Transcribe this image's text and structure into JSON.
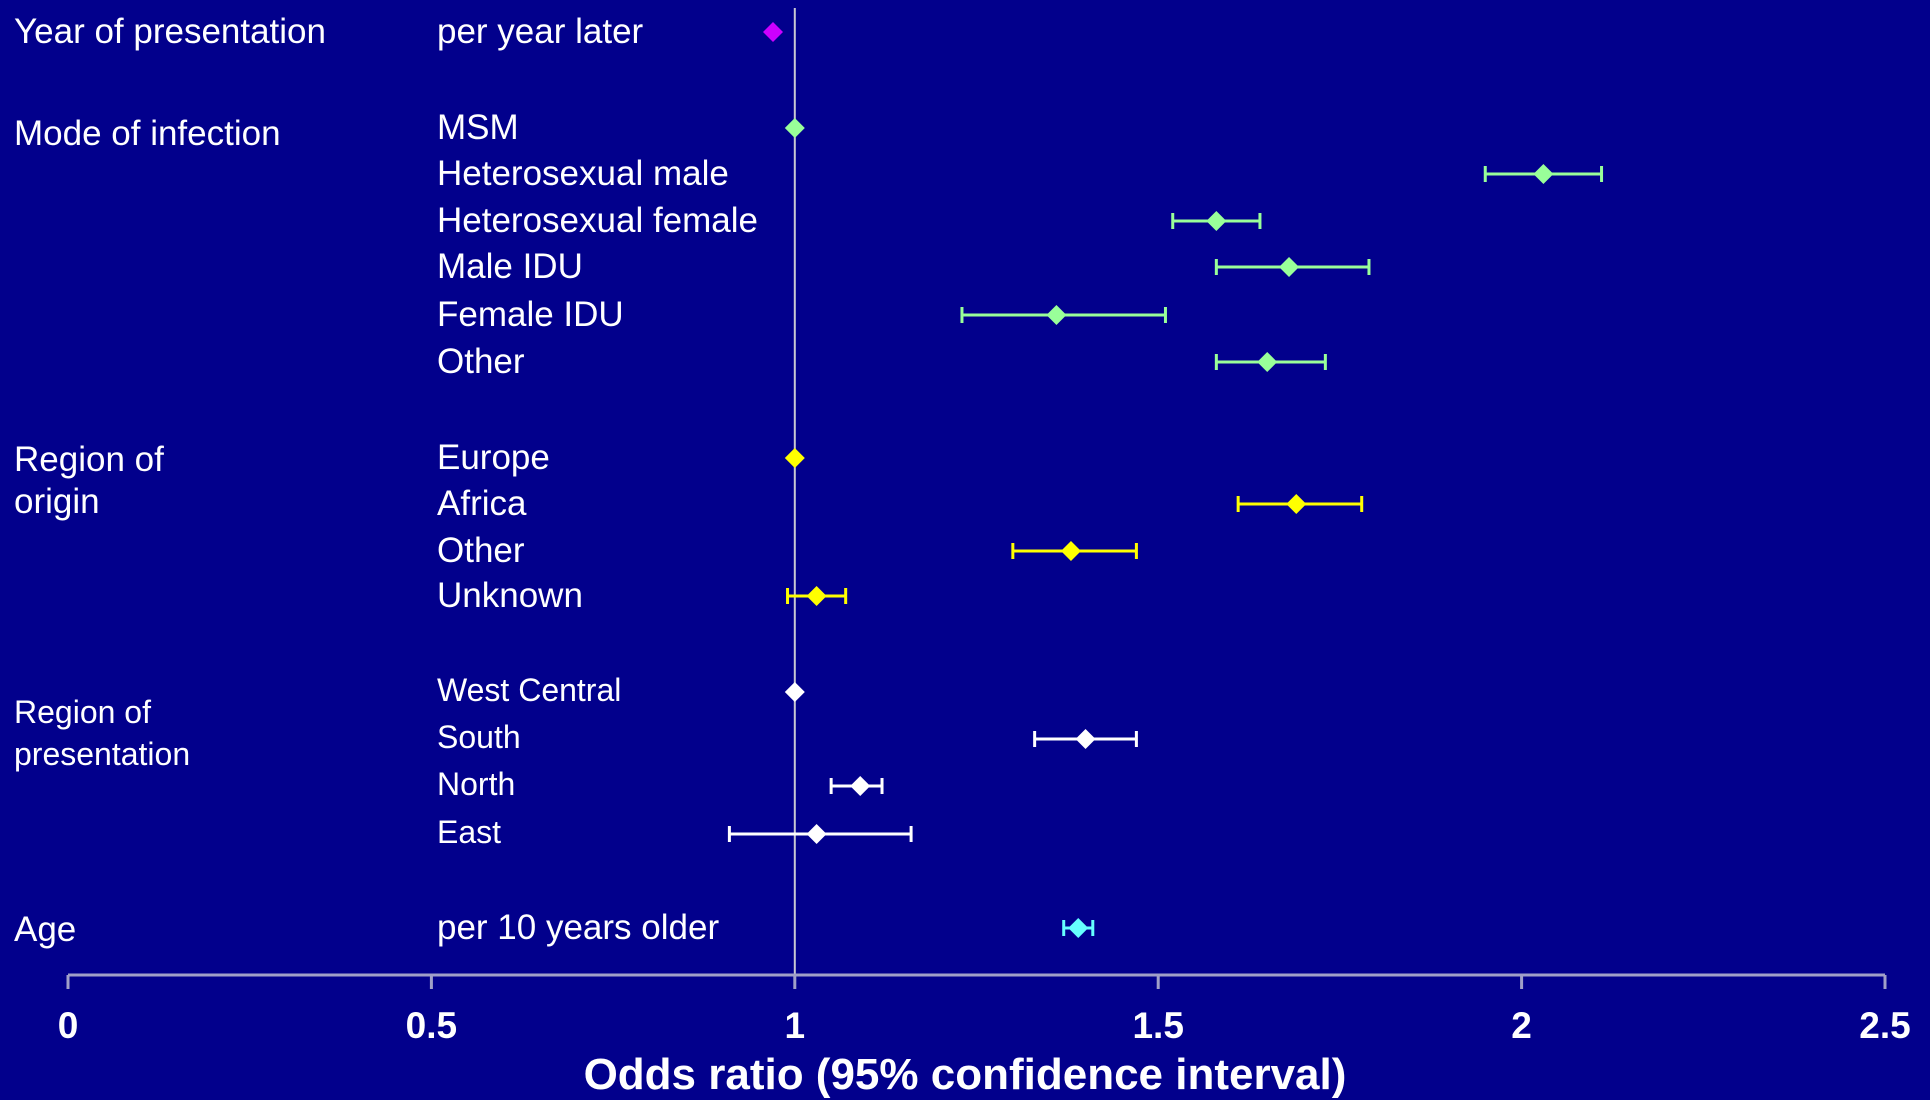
{
  "colors": {
    "background": "#02008C",
    "axis": "#A0A0C8",
    "reference": "#C8C8D2",
    "year": "#CC00FF",
    "mode": "#99FF99",
    "region_origin": "#FFFF00",
    "region_presentation": "#FFFFFF",
    "age": "#66FFFF"
  },
  "chart_data": {
    "type": "forest",
    "x_axis": {
      "title": "Odds ratio (95% confidence interval)",
      "range": [
        0,
        2.5
      ],
      "ticks": [
        "0",
        "0.5",
        "1",
        "1.5",
        "2",
        "2.5"
      ],
      "reference_line": 1
    },
    "groups": [
      {
        "label": "Year of presentation",
        "color_key": "year",
        "items": [
          {
            "label": "per year later",
            "or": 0.97,
            "lo": null,
            "hi": null
          }
        ]
      },
      {
        "label": "Mode of infection",
        "color_key": "mode",
        "items": [
          {
            "label": "MSM",
            "or": 1.0,
            "lo": null,
            "hi": null
          },
          {
            "label": "Heterosexual male",
            "or": 2.03,
            "lo": 1.95,
            "hi": 2.11
          },
          {
            "label": "Heterosexual female",
            "or": 1.58,
            "lo": 1.52,
            "hi": 1.64
          },
          {
            "label": "Male IDU",
            "or": 1.68,
            "lo": 1.58,
            "hi": 1.79
          },
          {
            "label": "Female IDU",
            "or": 1.36,
            "lo": 1.23,
            "hi": 1.51
          },
          {
            "label": "Other",
            "or": 1.65,
            "lo": 1.58,
            "hi": 1.73
          }
        ]
      },
      {
        "label": "Region of\norigin",
        "color_key": "region_origin",
        "items": [
          {
            "label": "Europe",
            "or": 1.0,
            "lo": null,
            "hi": null
          },
          {
            "label": "Africa",
            "or": 1.69,
            "lo": 1.61,
            "hi": 1.78
          },
          {
            "label": "Other",
            "or": 1.38,
            "lo": 1.3,
            "hi": 1.47
          },
          {
            "label": "Unknown",
            "or": 1.03,
            "lo": 0.99,
            "hi": 1.07
          }
        ]
      },
      {
        "label": "Region of\npresentation",
        "color_key": "region_presentation",
        "items": [
          {
            "label": "West Central",
            "or": 1.0,
            "lo": null,
            "hi": null
          },
          {
            "label": "South",
            "or": 1.4,
            "lo": 1.33,
            "hi": 1.47
          },
          {
            "label": "North",
            "or": 1.09,
            "lo": 1.05,
            "hi": 1.12
          },
          {
            "label": "East",
            "or": 1.03,
            "lo": 0.91,
            "hi": 1.16
          }
        ]
      },
      {
        "label": "Age",
        "color_key": "age",
        "items": [
          {
            "label": "per 10 years older",
            "or": 1.39,
            "lo": 1.37,
            "hi": 1.41
          }
        ]
      }
    ]
  }
}
